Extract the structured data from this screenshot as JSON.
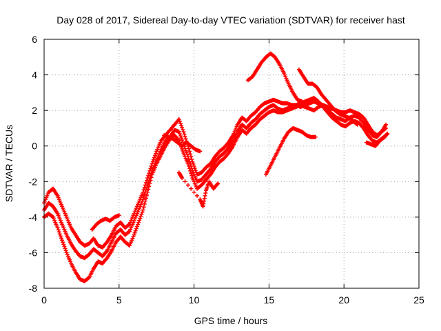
{
  "chart_data": {
    "type": "scatter",
    "title": "Day 028 of 2017, Sidereal Day-to-day VTEC variation (SDTVAR) for receiver hast",
    "xlabel": "GPS time / hours",
    "ylabel": "SDTVAR / TECUs",
    "xlim": [
      0,
      25
    ],
    "ylim": [
      -8,
      6
    ],
    "xticks": [
      "0",
      "5",
      "10",
      "15",
      "20",
      "25"
    ],
    "yticks": [
      "-8",
      "-6",
      "-4",
      "-2",
      "0",
      "2",
      "4",
      "6"
    ],
    "grid": true,
    "marker": "+",
    "color": "#ff0000",
    "series": [
      {
        "points": [
          [
            0.0,
            -3.2
          ],
          [
            0.3,
            -2.6
          ],
          [
            0.6,
            -2.4
          ],
          [
            0.9,
            -2.8
          ],
          [
            1.2,
            -3.4
          ],
          [
            1.5,
            -4.0
          ],
          [
            1.8,
            -4.6
          ],
          [
            2.1,
            -5.0
          ],
          [
            2.4,
            -5.4
          ],
          [
            2.7,
            -5.6
          ],
          [
            3.0,
            -5.5
          ],
          [
            3.3,
            -5.2
          ],
          [
            3.6,
            -5.6
          ],
          [
            3.9,
            -5.7
          ],
          [
            4.2,
            -5.4
          ],
          [
            4.5,
            -5.0
          ],
          [
            4.8,
            -4.5
          ],
          [
            5.1,
            -4.3
          ],
          [
            5.4,
            -4.6
          ],
          [
            5.7,
            -4.4
          ],
          [
            6.0,
            -3.8
          ],
          [
            6.3,
            -3.2
          ],
          [
            6.6,
            -2.6
          ],
          [
            6.9,
            -1.8
          ],
          [
            7.2,
            -1.0
          ],
          [
            7.5,
            -0.3
          ],
          [
            7.8,
            0.3
          ],
          [
            8.1,
            0.6
          ],
          [
            8.4,
            0.9
          ],
          [
            8.7,
            1.2
          ],
          [
            9.0,
            1.5
          ],
          [
            9.3,
            0.8
          ],
          [
            9.6,
            0.0
          ],
          [
            9.9,
            -0.9
          ],
          [
            10.2,
            -1.6
          ],
          [
            10.5,
            -1.5
          ],
          [
            10.8,
            -1.2
          ],
          [
            11.1,
            -1.0
          ],
          [
            11.4,
            -0.6
          ],
          [
            11.7,
            -0.3
          ],
          [
            12.0,
            -0.1
          ],
          [
            12.3,
            0.2
          ],
          [
            12.6,
            0.6
          ],
          [
            12.9,
            1.2
          ],
          [
            13.2,
            1.6
          ],
          [
            13.5,
            1.4
          ],
          [
            13.8,
            1.7
          ],
          [
            14.1,
            1.9
          ],
          [
            14.4,
            2.2
          ],
          [
            14.7,
            2.4
          ],
          [
            15.0,
            2.5
          ],
          [
            15.3,
            2.6
          ],
          [
            15.6,
            2.5
          ],
          [
            15.9,
            2.4
          ],
          [
            16.2,
            2.4
          ],
          [
            16.5,
            2.3
          ],
          [
            16.8,
            2.3
          ],
          [
            17.1,
            2.2
          ],
          [
            17.4,
            2.3
          ],
          [
            17.7,
            2.4
          ],
          [
            18.0,
            2.5
          ],
          [
            18.3,
            2.4
          ],
          [
            18.6,
            2.3
          ],
          [
            18.9,
            2.2
          ],
          [
            19.2,
            2.1
          ],
          [
            19.5,
            2.0
          ],
          [
            19.8,
            1.9
          ],
          [
            20.1,
            1.9
          ],
          [
            20.4,
            2.0
          ],
          [
            20.7,
            1.9
          ],
          [
            21.0,
            1.8
          ],
          [
            21.3,
            1.6
          ],
          [
            21.6,
            1.2
          ],
          [
            21.9,
            0.8
          ],
          [
            22.2,
            0.6
          ],
          [
            22.5,
            0.8
          ],
          [
            22.8,
            1.0
          ]
        ]
      },
      {
        "points": [
          [
            0.0,
            -3.6
          ],
          [
            0.3,
            -3.2
          ],
          [
            0.6,
            -3.4
          ],
          [
            0.9,
            -3.8
          ],
          [
            1.2,
            -4.4
          ],
          [
            1.5,
            -5.0
          ],
          [
            1.8,
            -5.5
          ],
          [
            2.1,
            -5.9
          ],
          [
            2.4,
            -6.2
          ],
          [
            2.7,
            -6.3
          ],
          [
            3.0,
            -6.1
          ],
          [
            3.3,
            -5.8
          ],
          [
            3.6,
            -6.0
          ],
          [
            3.9,
            -6.2
          ],
          [
            4.2,
            -5.9
          ],
          [
            4.5,
            -5.4
          ],
          [
            4.8,
            -4.9
          ],
          [
            5.1,
            -4.7
          ],
          [
            5.4,
            -5.0
          ],
          [
            5.7,
            -4.8
          ],
          [
            6.0,
            -4.2
          ],
          [
            6.3,
            -3.6
          ],
          [
            6.6,
            -3.0
          ],
          [
            6.9,
            -2.2
          ],
          [
            7.2,
            -1.4
          ],
          [
            7.5,
            -0.8
          ],
          [
            7.8,
            -0.2
          ],
          [
            8.1,
            0.3
          ],
          [
            8.4,
            0.5
          ],
          [
            8.7,
            0.9
          ],
          [
            9.0,
            0.8
          ],
          [
            9.3,
            0.1
          ],
          [
            9.6,
            -0.6
          ],
          [
            9.9,
            -1.4
          ],
          [
            10.2,
            -2.0
          ],
          [
            10.5,
            -1.9
          ],
          [
            10.8,
            -1.6
          ],
          [
            11.1,
            -1.3
          ],
          [
            11.4,
            -0.9
          ],
          [
            11.7,
            -0.6
          ],
          [
            12.0,
            -0.4
          ],
          [
            12.3,
            -0.1
          ],
          [
            12.6,
            0.3
          ],
          [
            12.9,
            0.8
          ],
          [
            13.2,
            1.2
          ],
          [
            13.5,
            1.0
          ],
          [
            13.8,
            1.3
          ],
          [
            14.1,
            1.5
          ],
          [
            14.4,
            1.8
          ],
          [
            14.7,
            2.0
          ],
          [
            15.0,
            2.2
          ],
          [
            15.3,
            2.3
          ],
          [
            15.6,
            2.1
          ],
          [
            15.9,
            2.0
          ],
          [
            16.2,
            2.1
          ],
          [
            16.5,
            2.2
          ],
          [
            16.8,
            2.3
          ],
          [
            17.1,
            2.4
          ],
          [
            17.4,
            2.5
          ],
          [
            17.7,
            2.6
          ],
          [
            18.0,
            2.7
          ],
          [
            18.3,
            2.5
          ],
          [
            18.6,
            2.2
          ],
          [
            18.9,
            1.9
          ],
          [
            19.2,
            1.6
          ],
          [
            19.5,
            1.4
          ],
          [
            19.8,
            1.2
          ],
          [
            20.1,
            1.1
          ],
          [
            20.4,
            1.3
          ],
          [
            20.7,
            1.4
          ],
          [
            21.0,
            1.3
          ],
          [
            21.3,
            1.0
          ],
          [
            21.6,
            0.6
          ],
          [
            21.9,
            0.3
          ],
          [
            22.2,
            0.2
          ],
          [
            22.5,
            0.4
          ],
          [
            22.8,
            0.6
          ]
        ]
      },
      {
        "points": [
          [
            0.0,
            -4.0
          ],
          [
            0.3,
            -3.8
          ],
          [
            0.6,
            -4.0
          ],
          [
            0.9,
            -4.6
          ],
          [
            1.2,
            -5.3
          ],
          [
            1.5,
            -6.0
          ],
          [
            1.8,
            -6.6
          ],
          [
            2.1,
            -7.1
          ],
          [
            2.4,
            -7.5
          ],
          [
            2.7,
            -7.6
          ],
          [
            3.0,
            -7.4
          ],
          [
            3.3,
            -6.9
          ],
          [
            3.6,
            -6.5
          ],
          [
            3.9,
            -6.6
          ],
          [
            4.2,
            -6.3
          ],
          [
            4.5,
            -5.9
          ],
          [
            4.8,
            -5.4
          ],
          [
            5.1,
            -5.1
          ],
          [
            5.4,
            -5.4
          ],
          [
            5.7,
            -5.6
          ],
          [
            6.0,
            -5.0
          ],
          [
            6.3,
            -4.3
          ],
          [
            6.6,
            -3.6
          ],
          [
            6.9,
            -2.6
          ],
          [
            7.2,
            -1.6
          ],
          [
            7.5,
            -1.0
          ],
          [
            7.8,
            -0.5
          ],
          [
            8.1,
            0.0
          ],
          [
            8.4,
            0.4
          ],
          [
            8.7,
            0.6
          ],
          [
            9.0,
            0.3
          ],
          [
            9.3,
            -0.4
          ],
          [
            9.6,
            -1.0
          ],
          [
            9.9,
            -1.8
          ],
          [
            10.2,
            -2.4
          ],
          [
            10.5,
            -2.2
          ],
          [
            10.8,
            -1.9
          ],
          [
            11.1,
            -1.6
          ],
          [
            11.4,
            -1.2
          ],
          [
            11.7,
            -0.9
          ],
          [
            12.0,
            -0.7
          ],
          [
            12.3,
            -0.4
          ],
          [
            12.6,
            0.0
          ],
          [
            12.9,
            0.5
          ],
          [
            13.2,
            0.9
          ],
          [
            13.5,
            0.7
          ],
          [
            13.8,
            1.0
          ],
          [
            14.1,
            1.2
          ],
          [
            14.4,
            1.5
          ],
          [
            14.7,
            1.7
          ],
          [
            15.0,
            1.9
          ],
          [
            15.3,
            2.0
          ],
          [
            15.6,
            1.9
          ],
          [
            15.9,
            1.9
          ],
          [
            16.2,
            2.0
          ],
          [
            16.5,
            2.1
          ],
          [
            16.8,
            2.2
          ],
          [
            17.1,
            2.3
          ],
          [
            17.4,
            2.2
          ],
          [
            17.7,
            2.1
          ],
          [
            18.0,
            2.0
          ],
          [
            18.3,
            2.2
          ],
          [
            18.6,
            2.3
          ],
          [
            18.9,
            2.1
          ],
          [
            19.2,
            1.8
          ],
          [
            19.5,
            1.6
          ],
          [
            19.8,
            1.5
          ],
          [
            20.1,
            1.4
          ],
          [
            20.4,
            1.6
          ],
          [
            20.7,
            1.7
          ],
          [
            21.0,
            1.6
          ],
          [
            21.3,
            1.3
          ],
          [
            21.6,
            0.9
          ],
          [
            21.9,
            0.6
          ],
          [
            22.2,
            0.5
          ],
          [
            22.5,
            0.8
          ],
          [
            22.8,
            1.2
          ]
        ]
      },
      {
        "points": [
          [
            13.6,
            3.7
          ],
          [
            13.9,
            3.9
          ],
          [
            14.2,
            4.3
          ],
          [
            14.5,
            4.7
          ],
          [
            14.8,
            5.0
          ],
          [
            15.1,
            5.2
          ],
          [
            15.4,
            5.0
          ],
          [
            15.7,
            4.6
          ],
          [
            16.0,
            4.1
          ],
          [
            16.3,
            3.5
          ],
          [
            16.6,
            3.0
          ],
          [
            16.9,
            2.6
          ],
          [
            17.2,
            2.5
          ]
        ]
      },
      {
        "points": [
          [
            17.0,
            4.3
          ],
          [
            17.3,
            3.9
          ],
          [
            17.6,
            3.5
          ],
          [
            17.9,
            3.5
          ],
          [
            18.2,
            3.3
          ],
          [
            18.5,
            2.9
          ],
          [
            18.8,
            2.6
          ],
          [
            19.1,
            2.3
          ],
          [
            19.4,
            2.0
          ],
          [
            19.7,
            1.8
          ],
          [
            20.0,
            1.7
          ],
          [
            20.3,
            1.6
          ],
          [
            20.6,
            1.4
          ],
          [
            20.9,
            1.2
          ]
        ]
      },
      {
        "points": [
          [
            14.8,
            -1.6
          ],
          [
            15.1,
            -1.1
          ],
          [
            15.4,
            -0.6
          ],
          [
            15.7,
            -0.1
          ],
          [
            16.0,
            0.4
          ],
          [
            16.3,
            0.8
          ],
          [
            16.6,
            1.0
          ],
          [
            16.9,
            0.9
          ],
          [
            17.2,
            0.8
          ],
          [
            17.5,
            0.6
          ],
          [
            17.8,
            0.5
          ],
          [
            18.1,
            0.5
          ]
        ]
      },
      {
        "points": [
          [
            9.0,
            -1.5
          ],
          [
            9.2,
            -1.8
          ],
          [
            10.4,
            -3.0
          ],
          [
            10.6,
            -3.4
          ],
          [
            10.8,
            -2.5
          ],
          [
            11.0,
            -2.0
          ],
          [
            11.3,
            -2.4
          ],
          [
            11.6,
            -2.1
          ]
        ]
      },
      {
        "points": [
          [
            8.0,
            0.6
          ],
          [
            8.3,
            0.5
          ],
          [
            8.6,
            0.4
          ],
          [
            8.9,
            0.2
          ],
          [
            9.2,
            0.0
          ],
          [
            9.5,
            0.2
          ],
          [
            9.8,
            0.0
          ],
          [
            10.1,
            -0.2
          ],
          [
            10.4,
            -0.3
          ]
        ]
      },
      {
        "points": [
          [
            21.5,
            0.2
          ],
          [
            21.8,
            0.1
          ],
          [
            22.1,
            0.0
          ],
          [
            22.4,
            0.3
          ],
          [
            22.7,
            0.5
          ],
          [
            22.9,
            0.7
          ]
        ]
      },
      {
        "points": [
          [
            3.2,
            -4.7
          ],
          [
            3.5,
            -4.4
          ],
          [
            3.8,
            -4.2
          ],
          [
            4.1,
            -4.1
          ],
          [
            4.4,
            -4.2
          ],
          [
            4.7,
            -4.0
          ],
          [
            5.0,
            -3.9
          ]
        ]
      }
    ]
  }
}
